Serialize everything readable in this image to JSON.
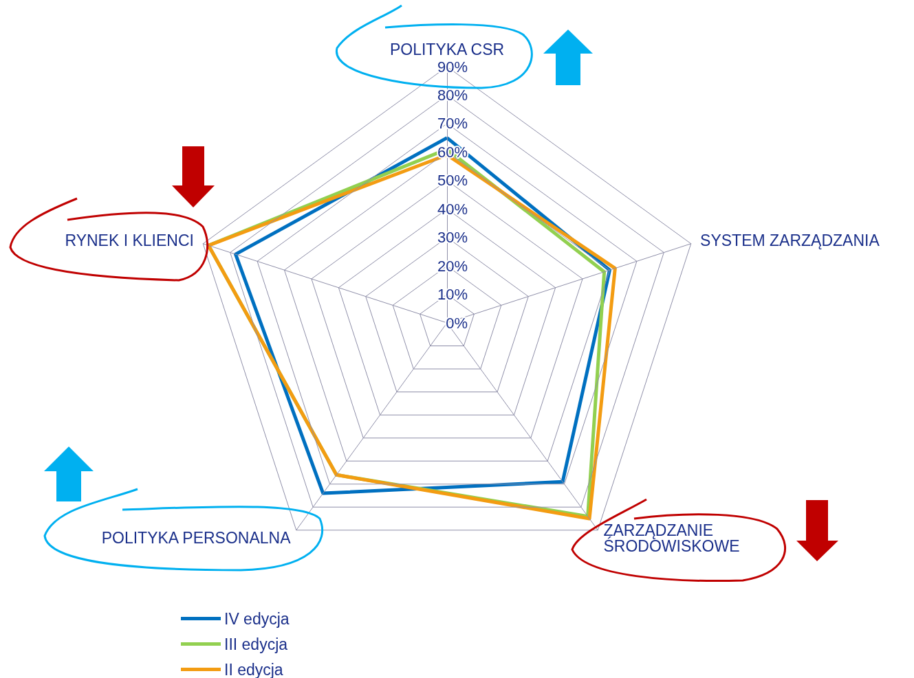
{
  "chart_data": {
    "type": "radar",
    "categories": [
      "POLITYKA CSR",
      "SYSTEM ZARZĄDZANIA",
      "ZARZĄDZANIE ŚRODOWISKOWE",
      "POLITYKA PERSONALNA",
      "RYNEK I KLIENCI"
    ],
    "series": [
      {
        "name": "IV edycja",
        "color": "#0070c0",
        "values": [
          65,
          60,
          69,
          74,
          78
        ]
      },
      {
        "name": "III edycja",
        "color": "#92d050",
        "values": [
          61,
          58,
          84,
          66,
          88
        ]
      },
      {
        "name": "II edycja",
        "color": "#f39c12",
        "values": [
          59,
          62,
          85,
          66,
          88
        ]
      }
    ],
    "ylim": [
      0,
      90
    ],
    "yticks": [
      {
        "value": 0,
        "label": "0%"
      },
      {
        "value": 10,
        "label": "10%"
      },
      {
        "value": 20,
        "label": "20%"
      },
      {
        "value": 30,
        "label": "30%"
      },
      {
        "value": 40,
        "label": "40%"
      },
      {
        "value": 50,
        "label": "50%"
      },
      {
        "value": 60,
        "label": "60%"
      },
      {
        "value": 70,
        "label": "70%"
      },
      {
        "value": 80,
        "label": "80%"
      },
      {
        "value": 90,
        "label": "90%"
      }
    ],
    "legend": "bottom left",
    "marker": "none",
    "line_style": "solid"
  }
}
